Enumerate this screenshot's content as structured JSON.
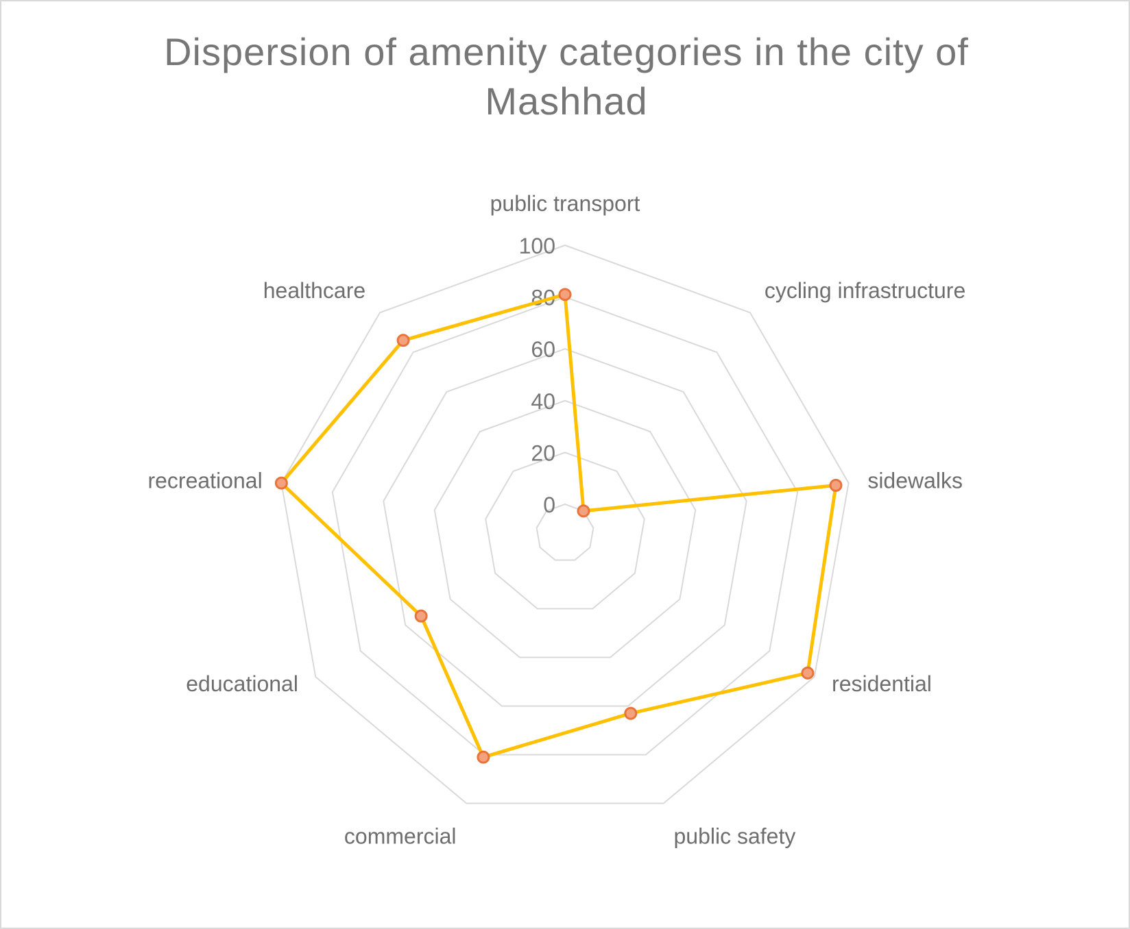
{
  "chart_data": {
    "type": "radar",
    "title": "Dispersion of amenity categories in the city of Mashhad",
    "categories": [
      "public transport",
      "cycling infrastructure",
      "sidewalks",
      "residential",
      "public safety",
      "commercial",
      "educational",
      "recreational",
      "healthcare"
    ],
    "series": [
      {
        "values": [
          81,
          0,
          95,
          97,
          63,
          81,
          53,
          100,
          86
        ]
      }
    ],
    "rlim": [
      0,
      100
    ],
    "ticks": [
      "0",
      "20",
      "40",
      "60",
      "80",
      "100"
    ],
    "grid": true,
    "legend": "none",
    "colors": {
      "line": "#ffc000",
      "marker_fill": "#f4a27e",
      "marker_edge": "#e8743b",
      "grid": "#d9d9d9",
      "text": "#767676"
    }
  }
}
